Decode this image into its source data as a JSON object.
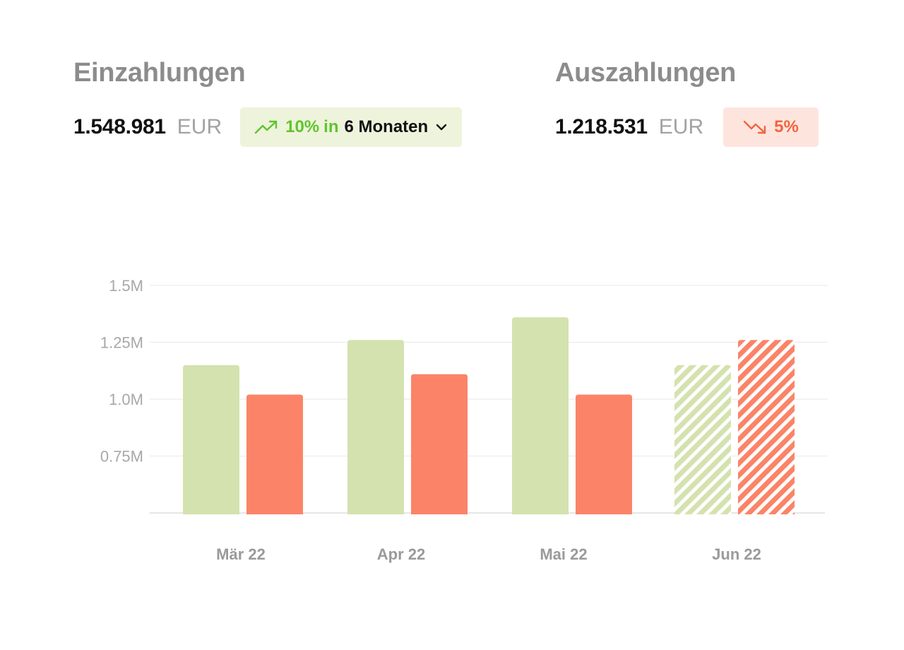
{
  "deposits": {
    "title": "Einzahlungen",
    "amount": "1.548.981",
    "currency": "EUR",
    "trend_icon": "trend-up-icon",
    "trend_percent": "10%",
    "trend_in": "in",
    "trend_period": "6 Monaten",
    "dropdown_icon": "chevron-down-icon"
  },
  "withdrawals": {
    "title": "Auszahlungen",
    "amount": "1.218.531",
    "currency": "EUR",
    "trend_icon": "trend-down-icon",
    "trend_percent": "5%"
  },
  "colors": {
    "deposits": "#d4e2af",
    "withdrawals": "#fb8468",
    "trend_up": "#5fc52c",
    "trend_down": "#f3643f"
  },
  "chart_data": {
    "type": "bar",
    "categories": [
      "Mär 22",
      "Apr 22",
      "Mai 22",
      "Jun 22"
    ],
    "yticks": [
      {
        "value": 0.75,
        "label": "0.75M"
      },
      {
        "value": 1.0,
        "label": "1.0M"
      },
      {
        "value": 1.25,
        "label": "1.25M"
      },
      {
        "value": 1.5,
        "label": "1.5M"
      }
    ],
    "ylim": [
      0.5,
      1.5
    ],
    "unit": "M",
    "grid": true,
    "series": [
      {
        "key": "deposits",
        "values": [
          1.15,
          1.26,
          1.36,
          1.15
        ],
        "projected": [
          false,
          false,
          false,
          true
        ]
      },
      {
        "key": "withdrawals",
        "values": [
          1.02,
          1.11,
          1.02,
          1.26
        ],
        "projected": [
          false,
          false,
          false,
          true
        ]
      }
    ]
  }
}
